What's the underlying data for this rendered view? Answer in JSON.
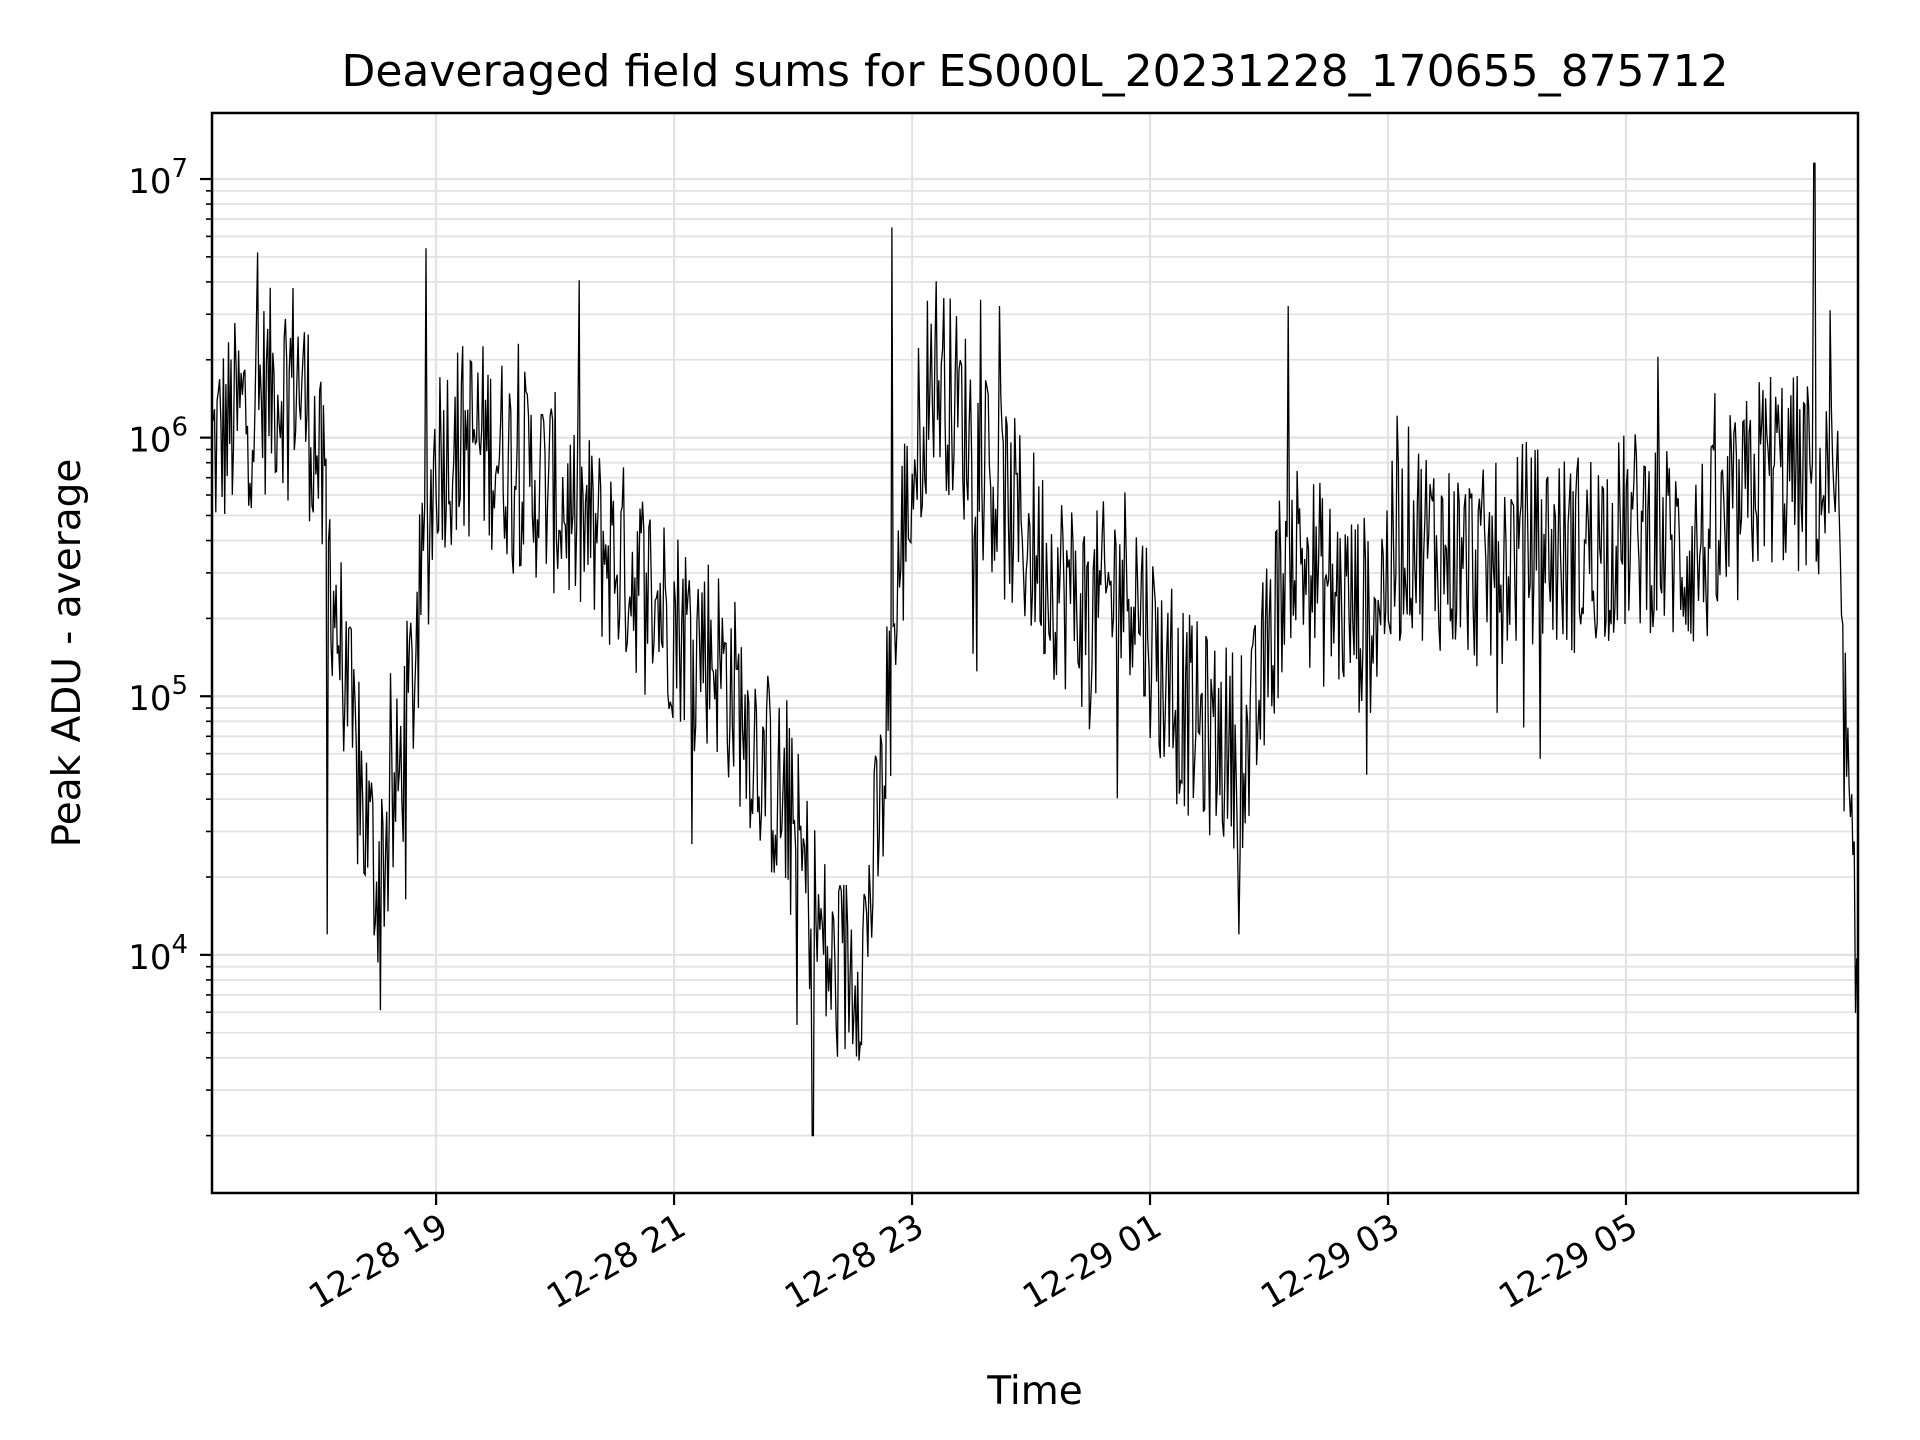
{
  "chart_data": {
    "type": "line",
    "title": "Deaveraged field sums for ES000L_20231228_170655_875712",
    "xlabel": "Time",
    "ylabel": "Peak ADU - average",
    "yscale": "log",
    "ylim": [
      1200,
      18000000
    ],
    "xlim": [
      "2023-12-28 17:07",
      "2023-12-29 06:57"
    ],
    "grid": "major and minor",
    "line_color": "#000000",
    "x_ticks": [
      {
        "t": "2023-12-28 19:00",
        "label": "12-28 19"
      },
      {
        "t": "2023-12-28 21:00",
        "label": "12-28 21"
      },
      {
        "t": "2023-12-28 23:00",
        "label": "12-28 23"
      },
      {
        "t": "2023-12-29 01:00",
        "label": "12-29 01"
      },
      {
        "t": "2023-12-29 03:00",
        "label": "12-29 03"
      },
      {
        "t": "2023-12-29 05:00",
        "label": "12-29 05"
      }
    ],
    "y_ticks": [
      {
        "value": 10000,
        "base": "10",
        "exp": "4"
      },
      {
        "value": 100000,
        "base": "10",
        "exp": "5"
      },
      {
        "value": 1000000,
        "base": "10",
        "exp": "6"
      },
      {
        "value": 10000000,
        "base": "10",
        "exp": "7"
      }
    ],
    "series": [
      {
        "x": [
          "2023-12-28 17:07",
          "2023-12-28 17:20",
          "2023-12-28 17:35",
          "2023-12-28 17:50",
          "2023-12-28 18:00",
          "2023-12-28 18:10",
          "2023-12-28 18:20",
          "2023-12-28 18:30",
          "2023-12-28 18:40",
          "2023-12-28 18:50",
          "2023-12-28 19:00",
          "2023-12-28 19:20",
          "2023-12-28 19:40",
          "2023-12-28 20:00",
          "2023-12-28 20:20",
          "2023-12-28 20:40",
          "2023-12-28 21:00",
          "2023-12-28 21:20",
          "2023-12-28 21:40",
          "2023-12-28 22:00",
          "2023-12-28 22:10",
          "2023-12-28 22:20",
          "2023-12-28 22:35",
          "2023-12-28 22:45",
          "2023-12-28 22:55",
          "2023-12-28 23:10",
          "2023-12-28 23:30",
          "2023-12-28 23:50",
          "2023-12-29 00:10",
          "2023-12-29 00:30",
          "2023-12-29 00:50",
          "2023-12-29 01:10",
          "2023-12-29 01:30",
          "2023-12-29 01:50",
          "2023-12-29 02:10",
          "2023-12-29 02:30",
          "2023-12-29 02:50",
          "2023-12-29 03:10",
          "2023-12-29 03:30",
          "2023-12-29 03:50",
          "2023-12-29 04:10",
          "2023-12-29 04:30",
          "2023-12-29 04:50",
          "2023-12-29 05:10",
          "2023-12-29 05:30",
          "2023-12-29 05:50",
          "2023-12-29 06:10",
          "2023-12-29 06:30",
          "2023-12-29 06:45",
          "2023-12-29 06:52",
          "2023-12-29 06:57"
        ],
        "y": [
          900000,
          1200000,
          1500000,
          1800000,
          900000,
          200000,
          50000,
          20000,
          40000,
          150000,
          900000,
          1000000,
          800000,
          600000,
          400000,
          300000,
          200000,
          150000,
          70000,
          30000,
          15000,
          8000,
          10000,
          40000,
          400000,
          2000000,
          1000000,
          500000,
          300000,
          200000,
          300000,
          100000,
          70000,
          60000,
          400000,
          250000,
          200000,
          450000,
          350000,
          300000,
          400000,
          350000,
          400000,
          450000,
          350000,
          400000,
          800000,
          700000,
          600000,
          40000,
          5000
        ],
        "spikes": [
          {
            "x": "2023-12-28 17:30",
            "y": 5200000
          },
          {
            "x": "2023-12-28 18:05",
            "y": 12000
          },
          {
            "x": "2023-12-28 18:55",
            "y": 5400000
          },
          {
            "x": "2023-12-28 22:10",
            "y": 2000
          },
          {
            "x": "2023-12-28 22:50",
            "y": 6500000
          },
          {
            "x": "2023-12-29 01:45",
            "y": 12000
          },
          {
            "x": "2023-12-29 06:35",
            "y": 11500000
          }
        ]
      }
    ]
  }
}
